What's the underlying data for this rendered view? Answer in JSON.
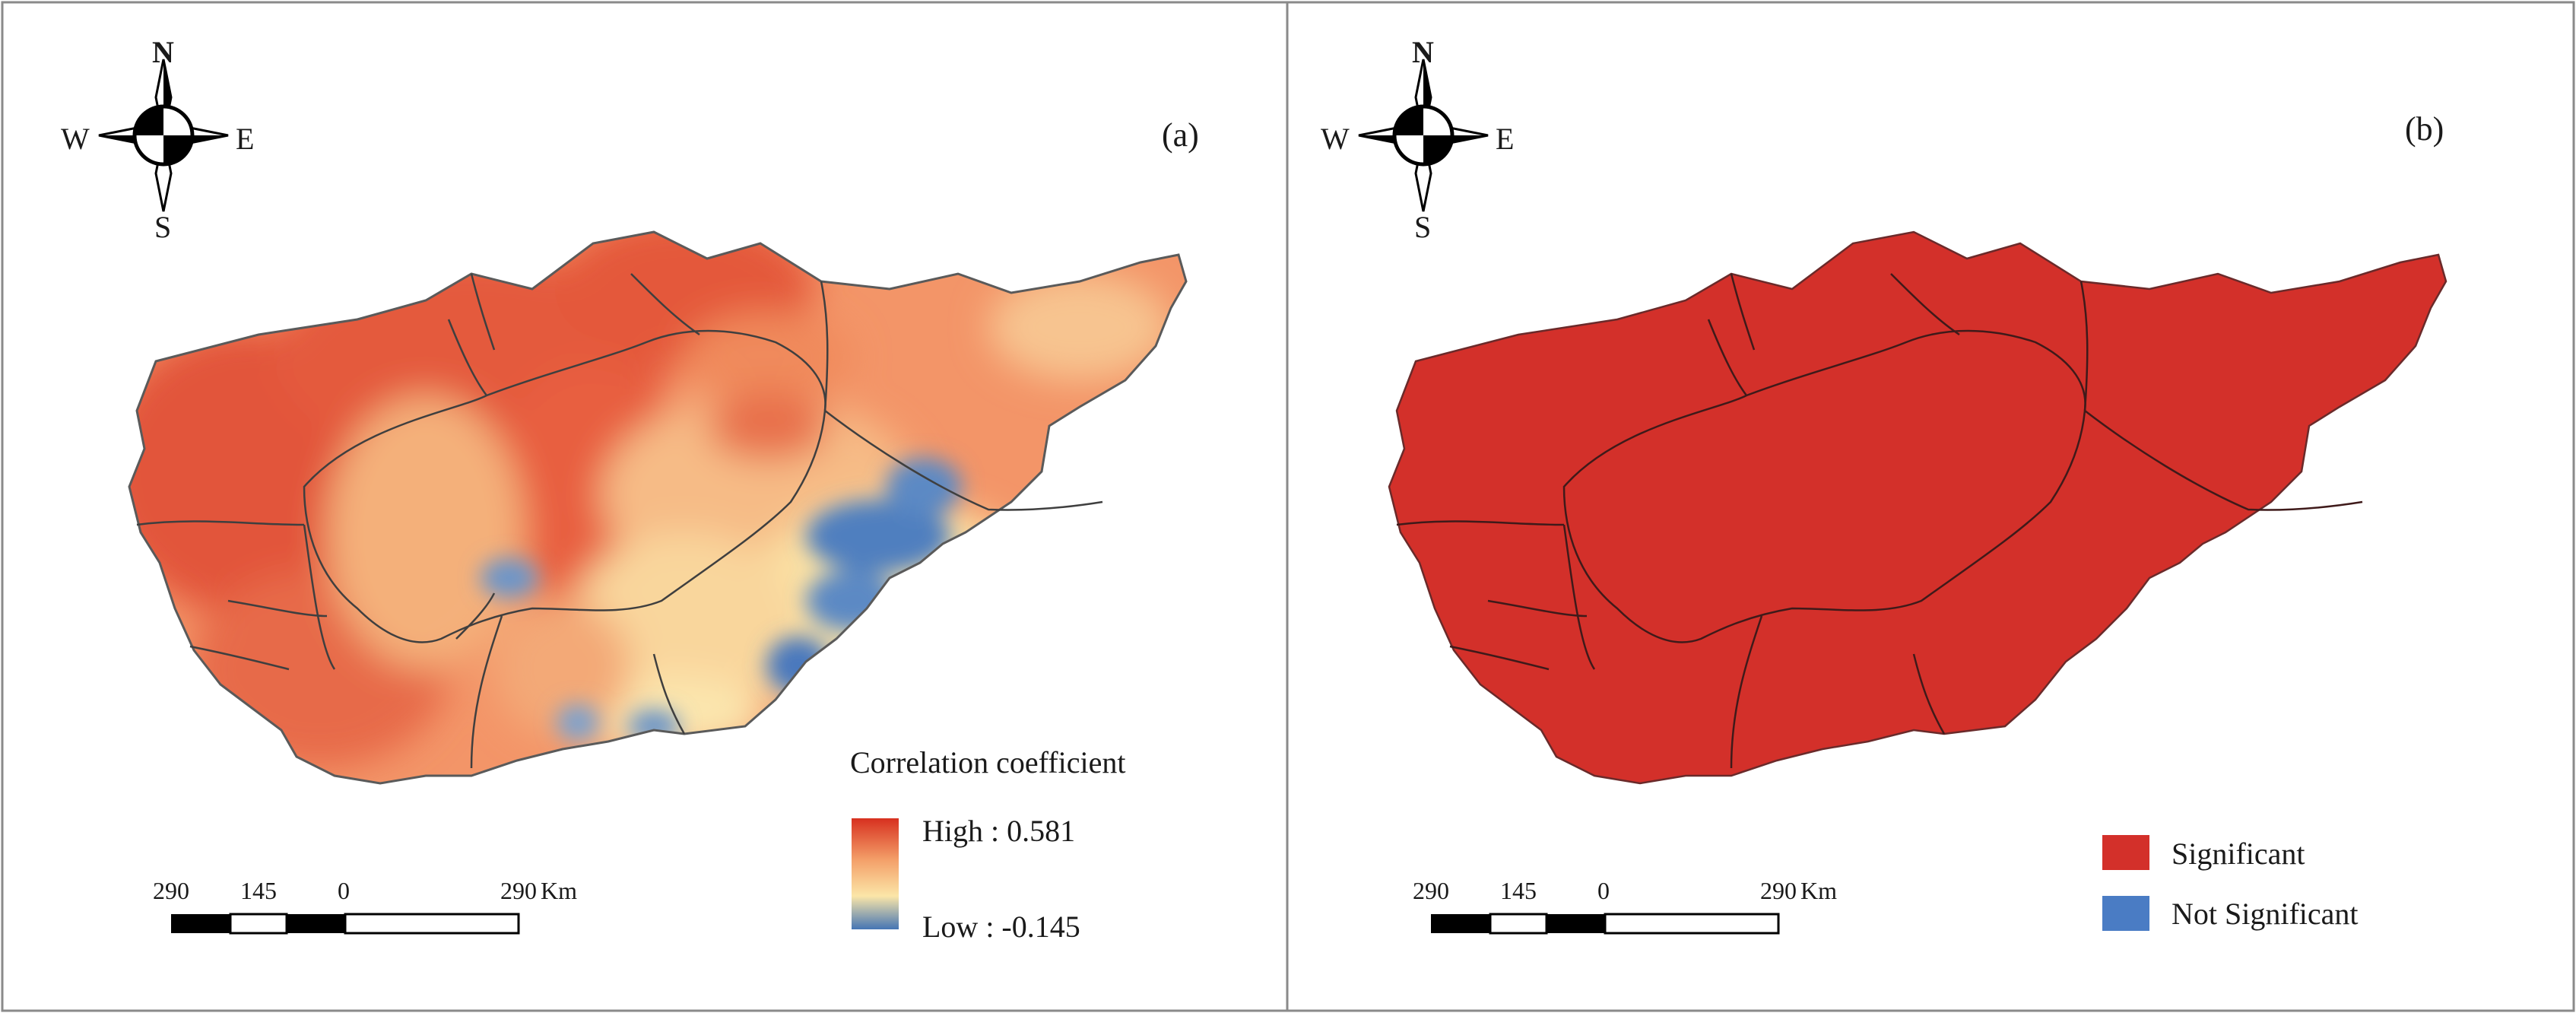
{
  "panels": [
    {
      "label": "(a)",
      "compass": {
        "n": "N",
        "s": "S",
        "e": "E",
        "w": "W"
      },
      "scalebar": {
        "ticks": [
          "290",
          "145",
          "0",
          "290"
        ],
        "unit": "Km"
      },
      "legend": {
        "title": "Correlation coefficient",
        "high_label": "High : 0.581",
        "low_label": "Low : -0.145",
        "high_value": 0.581,
        "low_value": -0.145,
        "ramp_colors": [
          "#d7301f",
          "#f4a16a",
          "#fbe6a8",
          "#4575b4"
        ]
      }
    },
    {
      "label": "(b)",
      "compass": {
        "n": "N",
        "s": "S",
        "e": "E",
        "w": "W"
      },
      "scalebar": {
        "ticks": [
          "290",
          "145",
          "0",
          "290"
        ],
        "unit": "Km"
      },
      "legend": {
        "items": [
          {
            "label": "Significant",
            "color": "#d3302a"
          },
          {
            "label": "Not Significant",
            "color": "#4a7cc4"
          }
        ]
      }
    }
  ]
}
